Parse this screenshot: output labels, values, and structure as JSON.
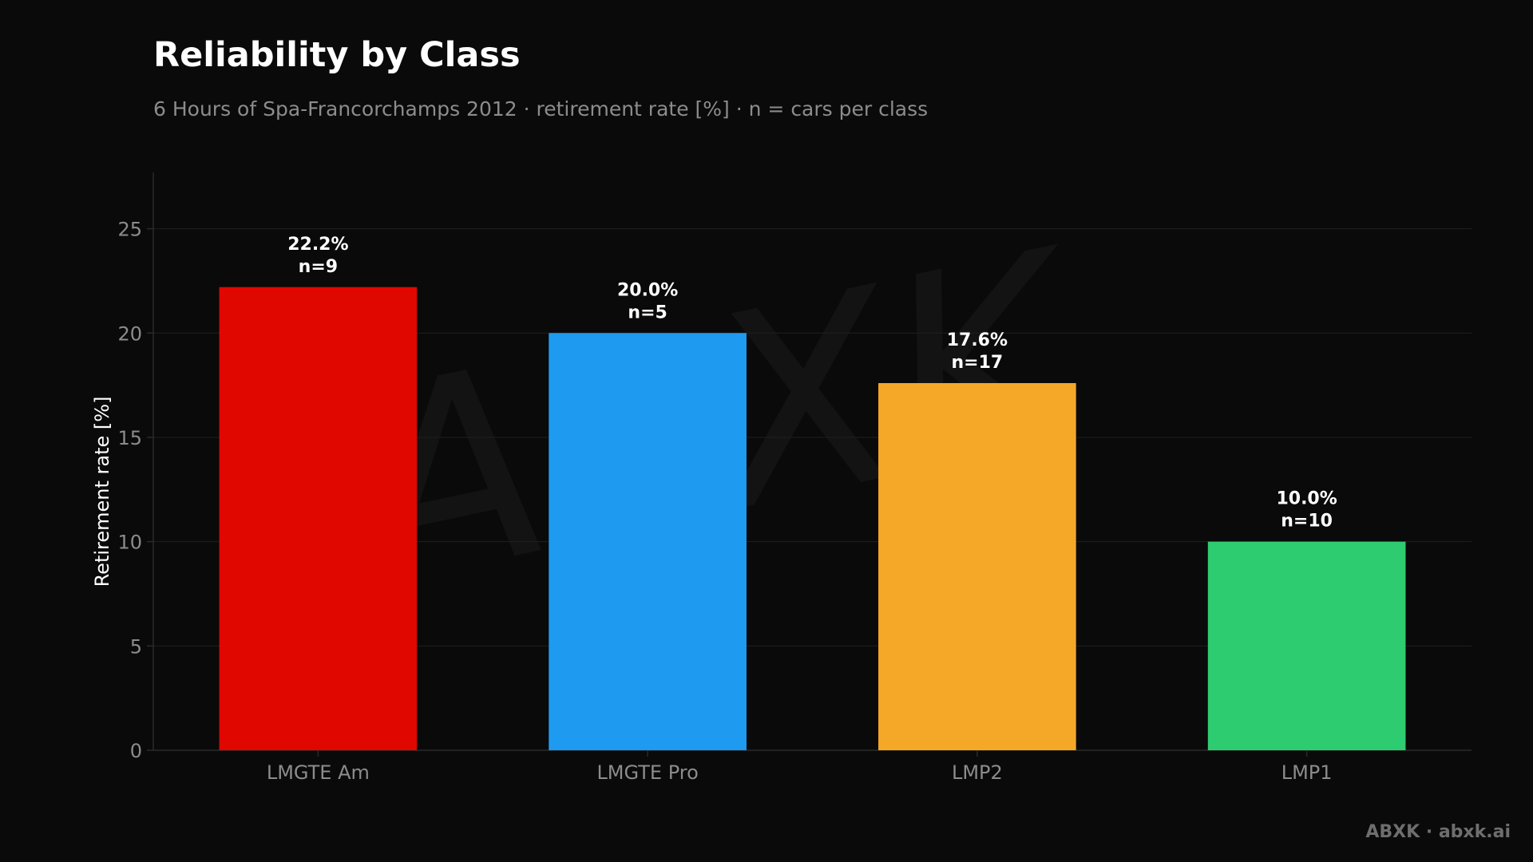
{
  "header": {
    "title": "Reliability by Class",
    "subtitle": "6 Hours of Spa-Francorchamps 2012 · retirement rate [%] · n = cars per class"
  },
  "credit": "ABXK · abxk.ai",
  "watermark_logo": "ABXK",
  "colors": {
    "background": "#0a0a0a",
    "grid": "#1f1f1f",
    "axis": "#2a2a2a",
    "tick_text": "#8c8c8c",
    "label_text": "#ffffff"
  },
  "chart_data": {
    "type": "bar",
    "title": "Reliability by Class",
    "xlabel": "",
    "ylabel": "Retirement rate [%]",
    "ylim": [
      0,
      27.7
    ],
    "yticks": [
      0,
      5,
      10,
      15,
      20,
      25
    ],
    "grid": true,
    "categories": [
      "LMGTE Am",
      "LMGTE Pro",
      "LMP2",
      "LMP1"
    ],
    "values": [
      22.2,
      20.0,
      17.6,
      10.0
    ],
    "value_labels": [
      "22.2%",
      "20.0%",
      "17.6%",
      "10.0%"
    ],
    "n_labels": [
      "n=9",
      "n=5",
      "n=17",
      "n=10"
    ],
    "bar_colors": [
      "#e00700",
      "#1e9bf0",
      "#f5a728",
      "#2ecc71"
    ]
  }
}
